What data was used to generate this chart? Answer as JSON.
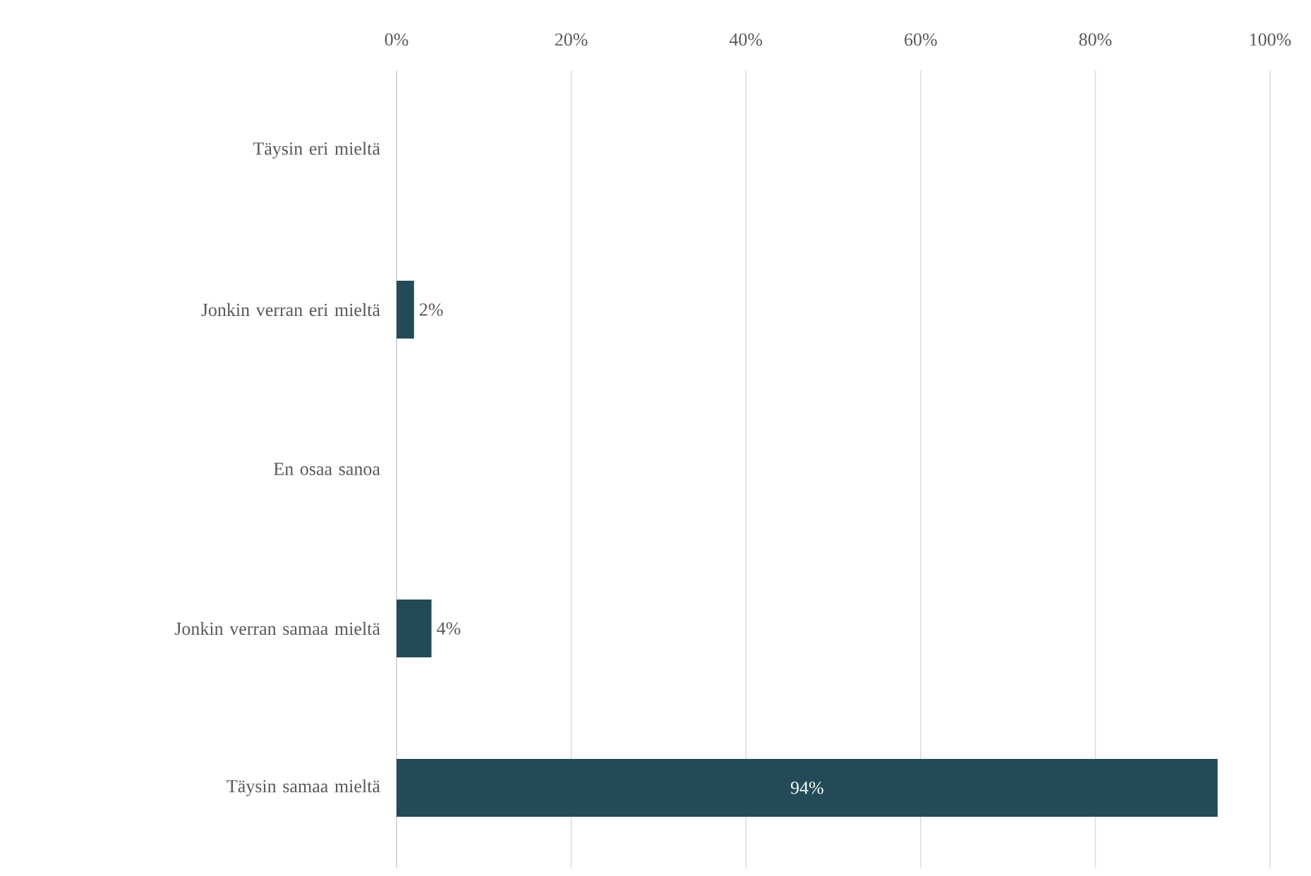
{
  "chart_data": {
    "type": "bar",
    "orientation": "horizontal",
    "categories": [
      "Täysin eri mieltä",
      "Jonkin verran eri mieltä",
      "En osaa sanoa",
      "Jonkin verran samaa mieltä",
      "Täysin samaa mieltä"
    ],
    "values": [
      0,
      2,
      0,
      4,
      94
    ],
    "value_labels": [
      null,
      "2%",
      null,
      "4%",
      "94%"
    ],
    "color": "#234b57",
    "xlim": [
      0,
      100
    ],
    "xticks": [
      {
        "value": 0,
        "label": "0%"
      },
      {
        "value": 20,
        "label": "20%"
      },
      {
        "value": 40,
        "label": "40%"
      },
      {
        "value": 60,
        "label": "60%"
      },
      {
        "value": 80,
        "label": "80%"
      },
      {
        "value": 100,
        "label": "100%"
      }
    ],
    "grid": "x"
  }
}
